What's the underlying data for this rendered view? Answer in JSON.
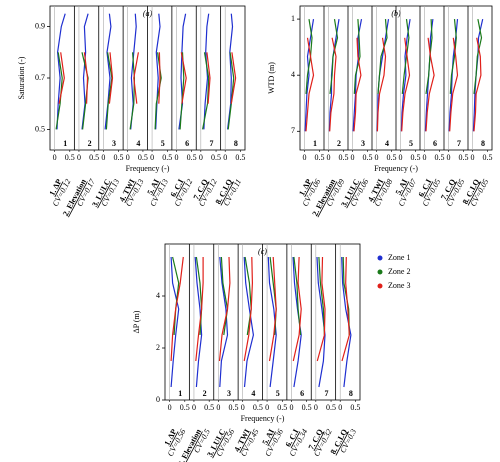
{
  "figure": {
    "zones": [
      {
        "name": "Zone 1",
        "color": "#1f2fd0"
      },
      {
        "name": "Zone 2",
        "color": "#1a7a1a"
      },
      {
        "name": "Zone 3",
        "color": "#e0201a"
      }
    ],
    "xlabel": "Frequency (-)",
    "xlim": [
      -0.15,
      0.65
    ],
    "xticks": [
      0,
      0.5
    ],
    "subplot_numbers": [
      "1",
      "2",
      "3",
      "4",
      "5",
      "6",
      "7",
      "8"
    ],
    "factor_labels": [
      "1. ΔP",
      "2. Elevation",
      "3. LULC",
      "4. TWI",
      "5. AI",
      "6. C.I",
      "7. C.Q",
      "8. C.I.Q"
    ]
  },
  "chart_data": [
    {
      "type": "profile",
      "title": "(a)",
      "ylabel": "Saturation (-)",
      "ylim": [
        0.42,
        0.98
      ],
      "yticks": [
        0.5,
        0.7,
        0.9
      ],
      "invert_y": false,
      "y": [
        0.5,
        0.6,
        0.7,
        0.8,
        0.9,
        0.95
      ],
      "cv_labels": [
        "CV=0.12",
        "CV=0.17",
        "CV=0.13",
        "CV=0.13",
        "CV=0.13",
        "CV=0.12",
        "CV=0.12",
        "CV=0.11"
      ],
      "subplots": [
        [
          [
            0.08,
            0.12,
            0.18,
            0.1,
            0.22,
            0.35
          ],
          [
            0.05,
            0.18,
            0.25,
            0.12,
            null,
            null
          ],
          [
            null,
            0.15,
            0.32,
            0.2,
            null,
            null
          ]
        ],
        [
          [
            0.1,
            0.2,
            0.15,
            0.22,
            0.18,
            0.3
          ],
          [
            0.12,
            0.22,
            0.3,
            0.1,
            null,
            null
          ],
          [
            null,
            0.25,
            0.28,
            0.18,
            null,
            null
          ]
        ],
        [
          [
            0.06,
            0.15,
            0.22,
            0.12,
            0.25,
            0.2
          ],
          [
            0.1,
            0.16,
            0.28,
            0.14,
            null,
            null
          ],
          [
            null,
            0.2,
            0.3,
            0.22,
            null,
            null
          ]
        ],
        [
          [
            0.1,
            0.18,
            0.12,
            0.2,
            0.28,
            0.25
          ],
          [
            0.08,
            0.2,
            0.22,
            0.16,
            null,
            null
          ],
          [
            null,
            0.3,
            0.2,
            0.35,
            null,
            null
          ]
        ],
        [
          [
            0.12,
            0.16,
            0.2,
            0.14,
            0.26,
            0.22
          ],
          [
            0.1,
            0.14,
            0.3,
            0.18,
            null,
            null
          ],
          [
            null,
            0.22,
            0.26,
            0.24,
            null,
            null
          ]
        ],
        [
          [
            0.08,
            0.2,
            0.15,
            0.18,
            0.22,
            0.3
          ],
          [
            0.12,
            0.18,
            0.24,
            0.2,
            null,
            null
          ],
          [
            null,
            0.18,
            0.32,
            0.16,
            null,
            null
          ]
        ],
        [
          [
            0.1,
            0.14,
            0.22,
            0.16,
            0.2,
            0.26
          ],
          [
            0.06,
            0.22,
            0.26,
            0.12,
            null,
            null
          ],
          [
            null,
            0.24,
            0.3,
            0.2,
            null,
            null
          ]
        ],
        [
          [
            0.08,
            0.18,
            0.2,
            0.15,
            0.24,
            0.2
          ],
          [
            0.1,
            0.2,
            0.28,
            0.16,
            null,
            null
          ],
          [
            null,
            0.2,
            0.34,
            0.22,
            null,
            null
          ]
        ]
      ]
    },
    {
      "type": "profile",
      "title": "(b)",
      "ylabel": "WTD (m)",
      "ylim": [
        0.3,
        8
      ],
      "yticks": [
        1,
        4,
        7
      ],
      "invert_y": true,
      "y": [
        1,
        2,
        3,
        4,
        5,
        6,
        7
      ],
      "cv_labels": [
        "CV=0.06",
        "CV=0.09",
        "CV=0.06",
        "CV=0.08",
        "CV=0.07",
        "CV=0.05",
        "CV=0.05",
        "CV=0.05"
      ],
      "subplots": [
        [
          [
            0.3,
            0.2,
            0.1,
            0.15,
            0.08,
            0.05,
            0.02
          ],
          [
            0.15,
            0.25,
            0.2,
            0.1,
            0.05,
            null,
            null
          ],
          [
            null,
            0.1,
            0.2,
            0.3,
            0.15,
            0.1,
            0.05
          ]
        ],
        [
          [
            0.35,
            0.25,
            0.15,
            0.1,
            0.1,
            0.05,
            0.03
          ],
          [
            0.2,
            0.3,
            0.15,
            0.12,
            0.05,
            null,
            null
          ],
          [
            null,
            0.12,
            0.25,
            0.2,
            0.18,
            0.08,
            0.04
          ]
        ],
        [
          [
            0.3,
            0.18,
            0.2,
            0.12,
            0.1,
            0.06,
            0.02
          ],
          [
            0.18,
            0.22,
            0.25,
            0.1,
            0.06,
            null,
            null
          ],
          [
            null,
            0.15,
            0.18,
            0.28,
            0.12,
            0.1,
            0.05
          ]
        ],
        [
          [
            0.4,
            0.3,
            0.2,
            0.1,
            0.05,
            0.04,
            0.02
          ],
          [
            0.3,
            0.35,
            0.15,
            0.1,
            0.05,
            null,
            null
          ],
          [
            null,
            0.2,
            0.3,
            0.25,
            0.1,
            0.05,
            0.03
          ]
        ],
        [
          [
            0.32,
            0.22,
            0.15,
            0.18,
            0.1,
            0.05,
            0.03
          ],
          [
            0.2,
            0.28,
            0.2,
            0.12,
            0.06,
            null,
            null
          ],
          [
            null,
            0.14,
            0.22,
            0.3,
            0.15,
            0.08,
            0.04
          ]
        ],
        [
          [
            0.28,
            0.2,
            0.18,
            0.14,
            0.1,
            0.06,
            0.03
          ],
          [
            0.22,
            0.25,
            0.18,
            0.14,
            0.05,
            null,
            null
          ],
          [
            null,
            0.12,
            0.2,
            0.32,
            0.16,
            0.09,
            0.05
          ]
        ],
        [
          [
            0.3,
            0.24,
            0.16,
            0.12,
            0.1,
            0.05,
            0.02
          ],
          [
            0.2,
            0.26,
            0.2,
            0.1,
            0.06,
            null,
            null
          ],
          [
            null,
            0.16,
            0.24,
            0.3,
            0.14,
            0.08,
            0.04
          ]
        ],
        [
          [
            0.34,
            0.2,
            0.18,
            0.12,
            0.08,
            0.06,
            0.03
          ],
          [
            0.18,
            0.3,
            0.16,
            0.12,
            0.05,
            null,
            null
          ],
          [
            null,
            0.14,
            0.26,
            0.28,
            0.12,
            0.1,
            0.05
          ]
        ]
      ]
    },
    {
      "type": "profile",
      "title": "(c)",
      "ylabel": "ΔP (m)",
      "ylim": [
        0,
        6
      ],
      "yticks": [
        0,
        2,
        4
      ],
      "invert_y": false,
      "y": [
        0.5,
        1.5,
        2.5,
        3.5,
        4.5,
        5.5
      ],
      "cv_labels": [
        "CV=0.56",
        "CV=0.5",
        "CV=0.56",
        "CV=0.45",
        "CV=0.36",
        "CV=0.34",
        "CV=0.32",
        "CV=0.3"
      ],
      "subplots": [
        [
          [
            0.05,
            0.12,
            0.2,
            0.3,
            0.1,
            0.05
          ],
          [
            null,
            null,
            0.15,
            0.2,
            0.3,
            0.1
          ],
          [
            null,
            0.05,
            0.1,
            0.2,
            0.35,
            0.45
          ]
        ],
        [
          [
            0.08,
            0.15,
            0.25,
            0.2,
            0.1,
            0.04
          ],
          [
            null,
            null,
            0.2,
            0.25,
            0.2,
            0.08
          ],
          [
            null,
            0.06,
            0.15,
            0.25,
            0.3,
            0.3
          ]
        ],
        [
          [
            0.05,
            0.1,
            0.3,
            0.25,
            0.12,
            0.05
          ],
          [
            null,
            null,
            0.18,
            0.3,
            0.15,
            0.1
          ],
          [
            null,
            0.04,
            0.12,
            0.3,
            0.38,
            0.35
          ]
        ],
        [
          [
            0.06,
            0.14,
            0.35,
            0.22,
            0.1,
            0.05
          ],
          [
            null,
            null,
            0.15,
            0.28,
            0.22,
            0.08
          ],
          [
            null,
            0.05,
            0.2,
            0.28,
            0.32,
            0.3
          ]
        ],
        [
          [
            0.1,
            0.2,
            0.3,
            0.22,
            0.08,
            0.04
          ],
          [
            null,
            null,
            0.25,
            0.3,
            0.2,
            0.1
          ],
          [
            null,
            0.08,
            0.22,
            0.3,
            0.25,
            0.2
          ]
        ],
        [
          [
            0.08,
            0.22,
            0.32,
            0.2,
            0.1,
            0.05
          ],
          [
            null,
            null,
            0.3,
            0.22,
            0.18,
            0.08
          ],
          [
            null,
            0.06,
            0.25,
            0.32,
            0.22,
            0.25
          ]
        ],
        [
          [
            0.1,
            0.25,
            0.3,
            0.2,
            0.08,
            0.04
          ],
          [
            null,
            null,
            0.28,
            0.25,
            0.15,
            0.1
          ],
          [
            null,
            0.05,
            0.28,
            0.3,
            0.2,
            0.22
          ]
        ],
        [
          [
            0.12,
            0.22,
            0.35,
            0.18,
            0.08,
            0.05
          ],
          [
            null,
            null,
            0.3,
            0.28,
            0.12,
            0.1
          ],
          [
            null,
            0.06,
            0.3,
            0.25,
            0.18,
            0.2
          ]
        ]
      ]
    }
  ]
}
